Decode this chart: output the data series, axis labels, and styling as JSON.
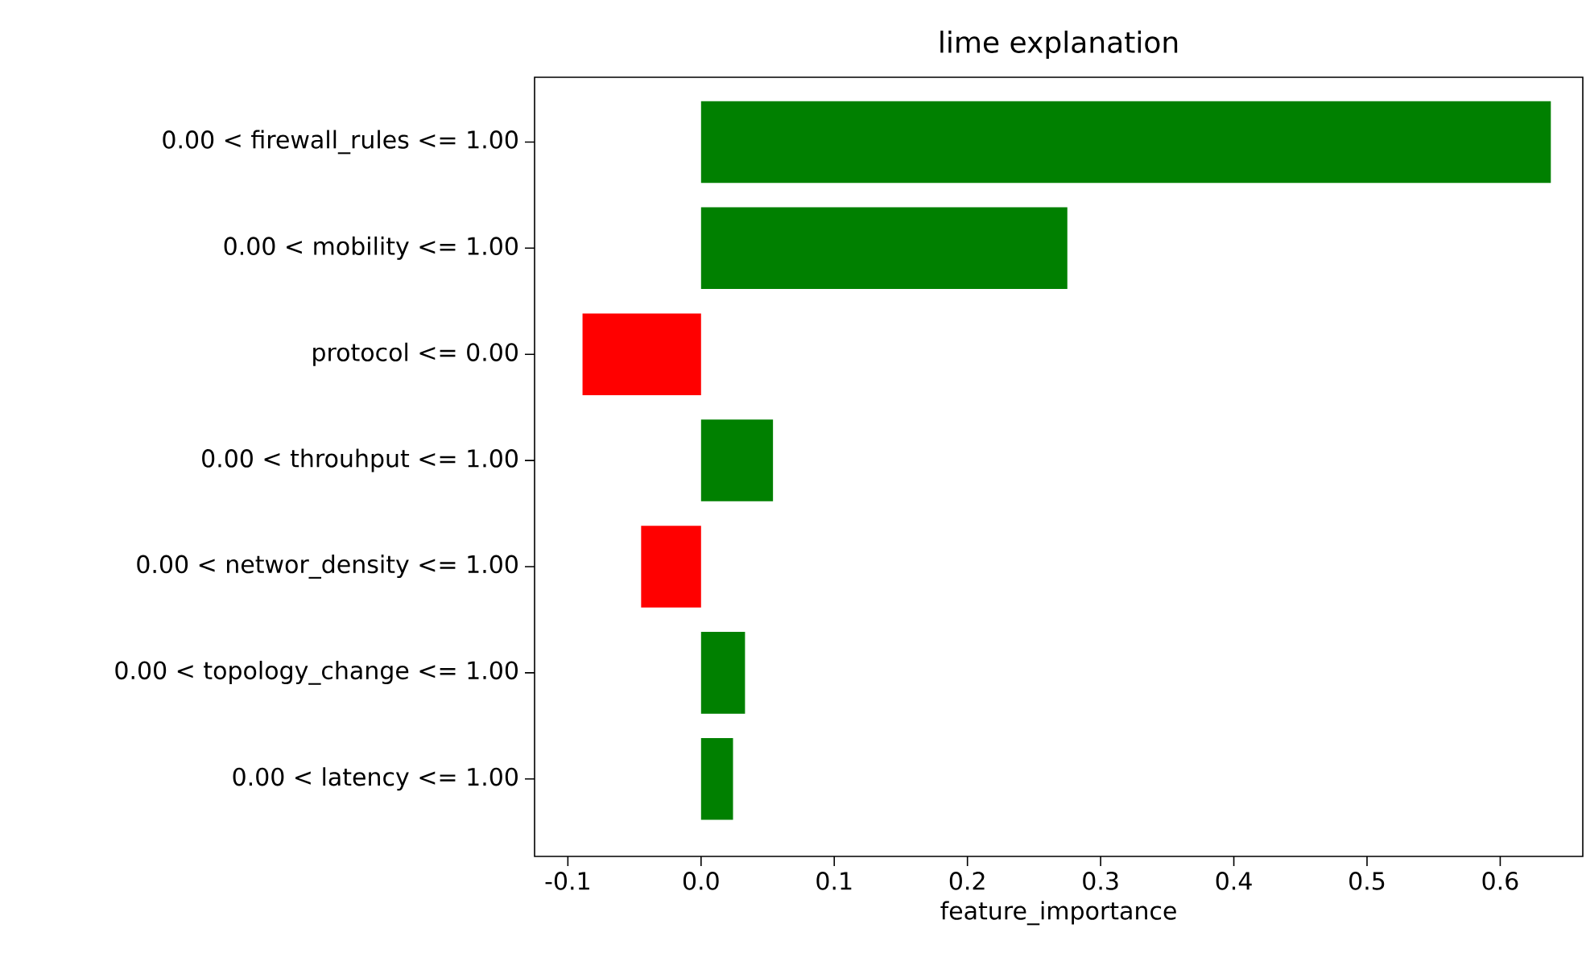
{
  "chart_data": {
    "type": "bar",
    "orientation": "horizontal",
    "title": "lime explanation",
    "xlabel": "feature_importance",
    "categories": [
      "0.00 < firewall_rules <= 1.00",
      "0.00 < mobility <= 1.00",
      "protocol <= 0.00",
      "0.00 < throuhput <= 1.00",
      "0.00 < networ_density <= 1.00",
      "0.00 < topology_change <= 1.00",
      "0.00 < latency <= 1.00"
    ],
    "values": [
      0.638,
      0.275,
      -0.089,
      0.054,
      -0.045,
      0.033,
      0.024
    ],
    "colors": [
      "#008000",
      "#008000",
      "#ff0000",
      "#008000",
      "#ff0000",
      "#008000",
      "#008000"
    ],
    "xlim": [
      -0.125,
      0.662
    ],
    "xticks": [
      -0.1,
      {
        "value": 0,
        "label": "0.0"
      },
      0.1,
      0.2,
      0.3,
      0.4,
      0.5,
      0.6
    ]
  }
}
